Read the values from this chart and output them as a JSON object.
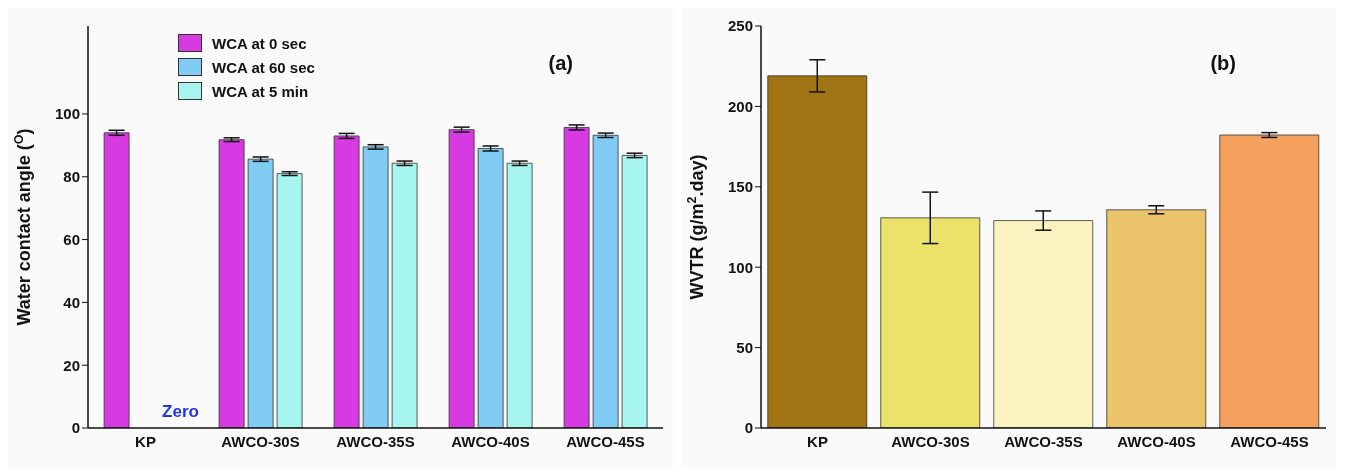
{
  "chart_data": [
    {
      "type": "bar",
      "ylabel": "Water contact angle ($^{O}$)",
      "categories": [
        "KP",
        "AWCO-30S",
        "AWCO-35S",
        "AWCO-40S",
        "AWCO-45S"
      ],
      "series": [
        {
          "name": "WCA at 0 sec",
          "color": "#d63ae0",
          "values": [
            94,
            91.8,
            93,
            95,
            95.7
          ],
          "errors": [
            0.8,
            0.6,
            0.8,
            0.8,
            0.8
          ]
        },
        {
          "name": "WCA at 60 sec",
          "color": "#80ccf5",
          "values": [
            0,
            85.6,
            89.5,
            89,
            93.2
          ],
          "errors": [
            null,
            0.7,
            0.7,
            0.8,
            0.7
          ]
        },
        {
          "name": "WCA at 5 min",
          "color": "#a6f5ee",
          "values": [
            0,
            81,
            84.3,
            84.3,
            86.8
          ],
          "errors": [
            null,
            0.6,
            0.7,
            0.7,
            0.7
          ]
        }
      ],
      "ylim": [
        0,
        128
      ],
      "yticks": [
        0,
        20,
        40,
        60,
        80,
        100
      ],
      "grid": false,
      "legend": "top left",
      "annotations": [
        "(a)",
        {
          "text": "Zero",
          "x": "KP",
          "y": 0
        }
      ]
    },
    {
      "type": "bar",
      "ylabel": "WVTR (g/m$^{2}$.day)",
      "categories": [
        "KP",
        "AWCO-30S",
        "AWCO-35S",
        "AWCO-40S",
        "AWCO-45S"
      ],
      "values": [
        219,
        130.7,
        129,
        135.7,
        182.2
      ],
      "errors": [
        10,
        16,
        6,
        2.5,
        1.5
      ],
      "colors": [
        "#a07412",
        "#ebe26a",
        "#faf3c0",
        "#eac36b",
        "#f4a05f"
      ],
      "ylim": [
        0,
        250
      ],
      "yticks": [
        0,
        50,
        100,
        150,
        200,
        250
      ],
      "grid": false,
      "legend": false,
      "annotations": [
        "(b)"
      ]
    }
  ]
}
